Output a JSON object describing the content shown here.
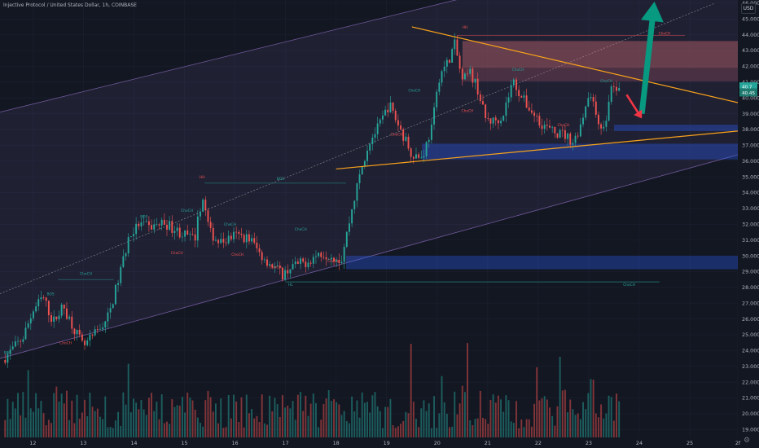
{
  "header": {
    "title": "Injective Protocol / United States Dollar, 1h, COINBASE",
    "currency": "USD",
    "settings_icon": "gear-icon"
  },
  "price_labels": {
    "current_top": "40.7",
    "current_bottom": "40.45"
  },
  "colors": {
    "background": "#131722",
    "up": "#26a69a",
    "down": "#ef5350",
    "trendline": "#f7a21b",
    "channel": "#9575cd",
    "demand_zone": "#2962ff",
    "arrow_up": "#089981",
    "arrow_down": "#f23645"
  },
  "chart_data": {
    "type": "candlestick",
    "symbol": "Injective Protocol / United States Dollar",
    "interval": "1h",
    "exchange": "COINBASE",
    "ylim": [
      18.5,
      46.2
    ],
    "y_ticks": [
      "46.000",
      "45.000",
      "44.000",
      "43.000",
      "42.000",
      "41.000",
      "40.000",
      "39.000",
      "38.000",
      "37.000",
      "36.000",
      "35.000",
      "34.000",
      "33.000",
      "32.000",
      "31.000",
      "30.000",
      "29.000",
      "28.000",
      "27.000",
      "26.000",
      "25.000",
      "24.000",
      "23.000",
      "22.000",
      "21.000",
      "20.000",
      "19.000"
    ],
    "y_tick_values": [
      46,
      45,
      44,
      43,
      42,
      41,
      40,
      39,
      38,
      37,
      36,
      35,
      34,
      33,
      32,
      31,
      30,
      29,
      28,
      27,
      26,
      25,
      24,
      23,
      22,
      21,
      20,
      19
    ],
    "x_range": [
      11.35,
      25.95
    ],
    "x_ticks": [
      "12",
      "13",
      "14",
      "15",
      "16",
      "17",
      "18",
      "19",
      "20",
      "21",
      "22",
      "23",
      "24",
      "25",
      "2f"
    ],
    "x_tick_values": [
      12,
      13,
      14,
      15,
      16,
      17,
      18,
      19,
      20,
      21,
      22,
      23,
      24,
      25,
      25.95
    ],
    "price_path": [
      [
        11.4,
        23.4
      ],
      [
        11.8,
        24.8
      ],
      [
        12.0,
        26.5
      ],
      [
        12.2,
        27.4
      ],
      [
        12.4,
        25.8
      ],
      [
        12.6,
        26.8
      ],
      [
        12.85,
        25.2
      ],
      [
        13.0,
        24.2
      ],
      [
        13.3,
        25.3
      ],
      [
        13.5,
        26.2
      ],
      [
        13.7,
        28.6
      ],
      [
        13.9,
        31.2
      ],
      [
        14.1,
        32.0
      ],
      [
        14.3,
        31.8
      ],
      [
        14.6,
        32.1
      ],
      [
        14.9,
        31.5
      ],
      [
        15.2,
        31.0
      ],
      [
        15.35,
        33.8
      ],
      [
        15.5,
        31.5
      ],
      [
        15.7,
        30.8
      ],
      [
        16.0,
        31.3
      ],
      [
        16.3,
        31.1
      ],
      [
        16.5,
        30.1
      ],
      [
        16.7,
        29.5
      ],
      [
        16.95,
        28.8
      ],
      [
        17.1,
        29.3
      ],
      [
        17.4,
        29.6
      ],
      [
        17.7,
        30.2
      ],
      [
        17.95,
        30.0
      ],
      [
        18.1,
        29.7
      ],
      [
        18.35,
        33.5
      ],
      [
        18.5,
        35.5
      ],
      [
        18.65,
        37.2
      ],
      [
        18.85,
        38.2
      ],
      [
        19.05,
        39.6
      ],
      [
        19.3,
        37.8
      ],
      [
        19.5,
        36.5
      ],
      [
        19.7,
        36.2
      ],
      [
        19.9,
        38.2
      ],
      [
        20.05,
        41.5
      ],
      [
        20.2,
        42.2
      ],
      [
        20.35,
        43.4
      ],
      [
        20.5,
        41.0
      ],
      [
        20.65,
        41.6
      ],
      [
        20.8,
        40.6
      ],
      [
        20.95,
        38.7
      ],
      [
        21.1,
        38.5
      ],
      [
        21.3,
        38.9
      ],
      [
        21.5,
        41.1
      ],
      [
        21.7,
        39.9
      ],
      [
        21.9,
        39.0
      ],
      [
        22.1,
        38.3
      ],
      [
        22.3,
        37.8
      ],
      [
        22.5,
        37.7
      ],
      [
        22.7,
        37.2
      ],
      [
        22.85,
        38.4
      ],
      [
        23.0,
        40.4
      ],
      [
        23.15,
        38.9
      ],
      [
        23.3,
        37.9
      ],
      [
        23.45,
        40.7
      ],
      [
        23.6,
        40.45
      ]
    ],
    "volume_max_units": 100,
    "channel": {
      "lower": [
        [
          11.35,
          23.5
        ],
        [
          25.95,
          36.4
        ]
      ],
      "upper": [
        [
          11.35,
          39.1
        ],
        [
          25.95,
          50.6
        ]
      ],
      "median": [
        [
          11.35,
          27.6
        ],
        [
          25.5,
          46.0
        ]
      ]
    },
    "trendlines": [
      {
        "from": [
          18.0,
          35.5
        ],
        "to": [
          25.95,
          37.9
        ]
      },
      {
        "from": [
          19.5,
          44.5
        ],
        "to": [
          25.95,
          39.7
        ]
      }
    ],
    "resistance_zones": [
      {
        "x": [
          20.5,
          25.95
        ],
        "y": [
          41.9,
          43.6
        ]
      },
      {
        "x": [
          20.5,
          25.95
        ],
        "y": [
          41.05,
          41.9
        ]
      }
    ],
    "support_zones": [
      {
        "x": [
          19.7,
          25.95
        ],
        "y": [
          36.1,
          37.1
        ]
      },
      {
        "x": [
          23.5,
          25.95
        ],
        "y": [
          37.9,
          38.3
        ]
      },
      {
        "x": [
          18.2,
          25.95
        ],
        "y": [
          29.15,
          30.0
        ]
      }
    ],
    "level_lines": [
      {
        "x": [
          20.4,
          24.9
        ],
        "y": 43.95
      },
      {
        "x": [
          17.0,
          24.4
        ],
        "y": 28.35
      },
      {
        "x": [
          15.4,
          18.2
        ],
        "y": 34.6
      },
      {
        "x": [
          12.5,
          13.6
        ],
        "y": 28.5
      }
    ],
    "annotations": [
      {
        "text": "HH",
        "x": 20.55,
        "y": 44.4,
        "color": "#ef5350"
      },
      {
        "text": "HH",
        "x": 15.35,
        "y": 34.9,
        "color": "#ef5350"
      },
      {
        "text": "HL",
        "x": 17.1,
        "y": 28.1,
        "color": "#26a69a"
      },
      {
        "text": "BOS",
        "x": 16.9,
        "y": 34.8,
        "color": "#26a69a"
      },
      {
        "text": "BOS",
        "x": 14.2,
        "y": 32.4,
        "color": "#26a69a"
      },
      {
        "text": "BOS",
        "x": 12.35,
        "y": 27.5,
        "color": "#26a69a"
      },
      {
        "text": "BOS",
        "x": 11.5,
        "y": 23.8,
        "color": "#26a69a"
      },
      {
        "text": "ChoCH",
        "x": 13.05,
        "y": 28.8,
        "color": "#26a69a"
      },
      {
        "text": "ChoCH",
        "x": 12.65,
        "y": 24.4,
        "color": "#ef5350"
      },
      {
        "text": "ChoCH",
        "x": 15.05,
        "y": 32.8,
        "color": "#26a69a"
      },
      {
        "text": "ChoCH",
        "x": 14.85,
        "y": 30.1,
        "color": "#ef5350"
      },
      {
        "text": "ChoCH",
        "x": 15.9,
        "y": 31.9,
        "color": "#26a69a"
      },
      {
        "text": "ChoCH",
        "x": 16.8,
        "y": 29.2,
        "color": "#ef5350"
      },
      {
        "text": "ChoCH",
        "x": 17.3,
        "y": 31.6,
        "color": "#26a69a"
      },
      {
        "text": "ChoCH",
        "x": 16.05,
        "y": 30.0,
        "color": "#ef5350"
      },
      {
        "text": "ChoCH",
        "x": 17.95,
        "y": 29.6,
        "color": "#ef5350"
      },
      {
        "text": "ChoCH",
        "x": 19.55,
        "y": 40.4,
        "color": "#26a69a"
      },
      {
        "text": "ChoCH",
        "x": 19.2,
        "y": 37.6,
        "color": "#ef5350"
      },
      {
        "text": "ChoCH",
        "x": 20.6,
        "y": 39.1,
        "color": "#ef5350"
      },
      {
        "text": "ChoCH",
        "x": 21.6,
        "y": 41.7,
        "color": "#26a69a"
      },
      {
        "text": "ChoCH",
        "x": 23.35,
        "y": 41.0,
        "color": "#26a69a"
      },
      {
        "text": "ChoCH",
        "x": 22.5,
        "y": 38.2,
        "color": "#ef5350"
      },
      {
        "text": "ChoCH",
        "x": 24.5,
        "y": 44.0,
        "color": "#ef5350"
      },
      {
        "text": "ChoCH",
        "x": 23.8,
        "y": 28.1,
        "color": "#26a69a"
      }
    ],
    "arrows": [
      {
        "direction": "up",
        "from": [
          24.05,
          39.0
        ],
        "to": [
          24.3,
          46.1
        ]
      },
      {
        "direction": "down",
        "from": [
          23.75,
          40.2
        ],
        "to": [
          24.05,
          38.7
        ]
      }
    ]
  }
}
